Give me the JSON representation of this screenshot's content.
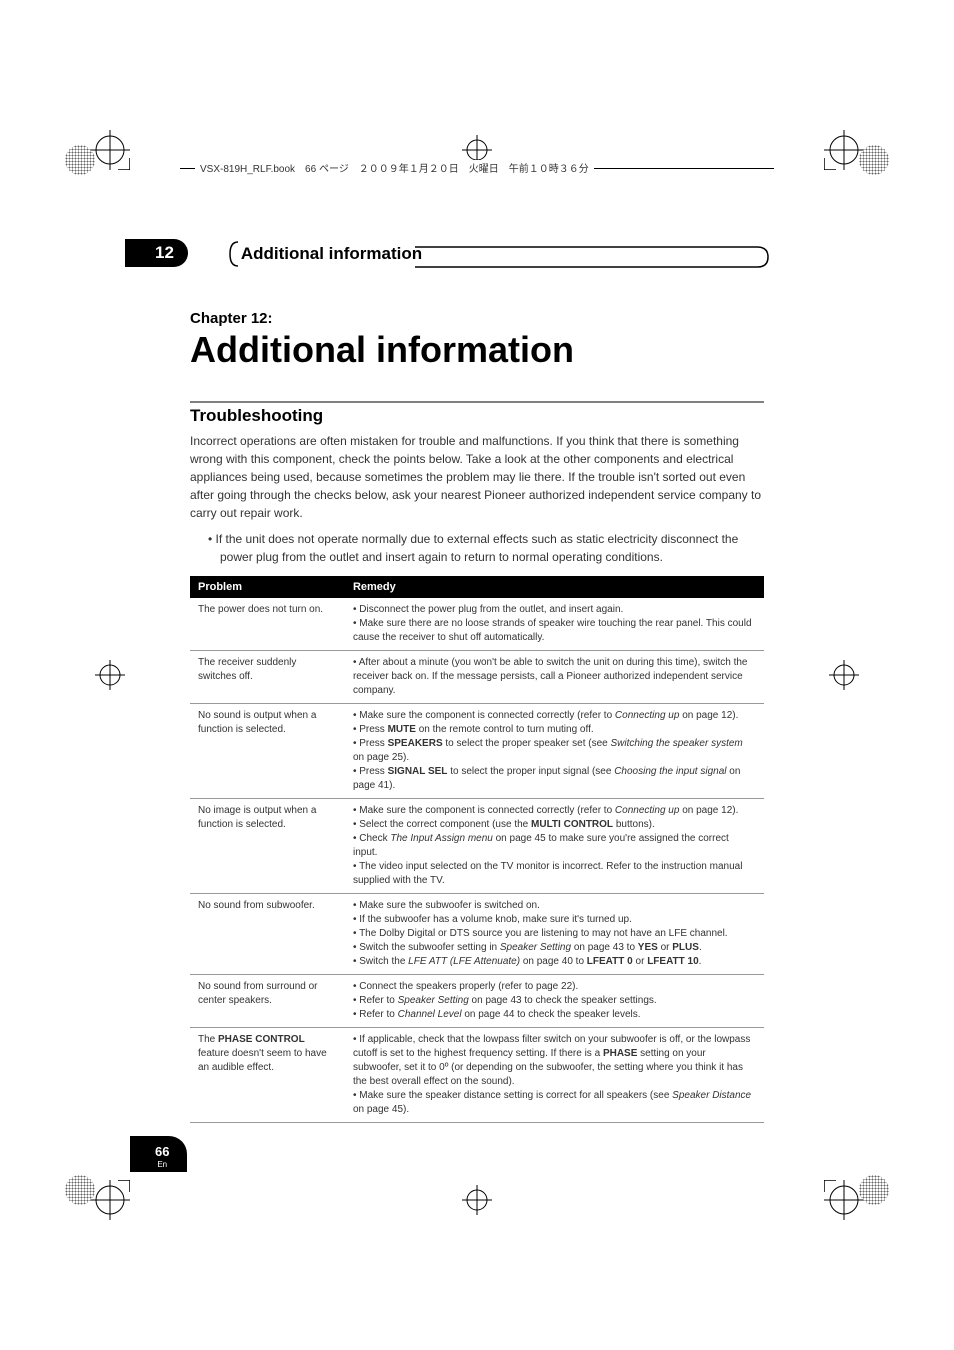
{
  "header_text": "VSX-819H_RLF.book　66 ページ　２００９年１月２０日　火曜日　午前１０時３６分",
  "chapter_number": "12",
  "chapter_header_title": "Additional information",
  "chapter_label": "Chapter 12:",
  "main_title": "Additional information",
  "section_title": "Troubleshooting",
  "intro_text": "Incorrect operations are often mistaken for trouble and malfunctions. If you think that there is something wrong with this component, check the points below. Take a look at the other components and electrical appliances being used, because sometimes the problem may lie there. If the trouble isn't sorted out even after going through the checks below, ask your nearest Pioneer authorized independent service company to carry out repair work.",
  "bullet_text": "• If the unit does not operate normally due to external effects such as static electricity disconnect the power plug from the outlet and insert again to return to normal operating conditions.",
  "table": {
    "type": "table",
    "header_bg": "#000000",
    "header_fg": "#ffffff",
    "row_border": "#999999",
    "text_color": "#333333",
    "columns": [
      "Problem",
      "Remedy"
    ],
    "col_widths": [
      "27%",
      "73%"
    ],
    "rows": [
      {
        "problem": "The power does not turn on.",
        "remedy": "• Disconnect the power plug from the outlet, and insert again.\n• Make sure there are no loose strands of speaker wire touching the rear panel. This could cause the receiver to shut off automatically."
      },
      {
        "problem": "The receiver suddenly switches off.",
        "remedy": "• After about a minute (you won't be able to switch the unit on during this time), switch the receiver back on. If the message persists, call a Pioneer authorized independent service company."
      },
      {
        "problem": "No sound is output when a function is selected.",
        "remedy_html": "• Make sure the component is connected correctly (refer to <i>Connecting up</i> on page 12).<br>• Press <b>MUTE</b> on the remote control to turn muting off.<br>• Press <b>SPEAKERS</b> to select the proper speaker set (see <i>Switching the speaker system</i> on page 25).<br>• Press <b>SIGNAL SEL</b> to select the proper input signal (see <i>Choosing the input signal</i> on page 41)."
      },
      {
        "problem": "No image is output when a function is selected.",
        "remedy_html": "• Make sure the component is connected correctly (refer to <i>Connecting up</i> on page 12).<br>• Select the correct component (use the <b>MULTI CONTROL</b> buttons).<br>• Check <i>The Input Assign menu</i> on page 45 to make sure you're assigned the correct input.<br>• The video input selected on the TV monitor is incorrect. Refer to the instruction manual supplied with the TV."
      },
      {
        "problem": "No sound from subwoofer.",
        "remedy_html": "• Make sure the subwoofer is switched on.<br>• If the subwoofer has a volume knob, make sure it's turned up.<br>• The Dolby Digital or DTS source you are listening to may not have an LFE channel.<br>• Switch the subwoofer setting in <i>Speaker Setting</i> on page 43 to <b>YES</b> or <b>PLUS</b>.<br>• Switch the <i>LFE ATT (LFE Attenuate)</i> on page 40 to <b>LFEATT 0</b> or <b>LFEATT 10</b>."
      },
      {
        "problem": "No sound from surround or center speakers.",
        "remedy_html": "• Connect the speakers properly (refer to page 22).<br>• Refer to <i>Speaker Setting</i> on page 43 to check the speaker settings.<br>• Refer to <i>Channel Level</i> on page 44 to check the speaker levels."
      },
      {
        "problem_html": "The <b>PHASE CONTROL</b> feature doesn't seem to have an audible effect.",
        "remedy_html": "• If applicable, check that the lowpass filter switch on your subwoofer is off, or the lowpass cutoff is set to the highest frequency setting. If there is a <b>PHASE</b> setting on your subwoofer, set it to 0º (or depending on the subwoofer, the setting where you think it has the best overall effect on the sound).<br>• Make sure the speaker distance setting is correct for all speakers (see <i>Speaker Distance</i> on page 45)."
      }
    ]
  },
  "page_number": "66",
  "page_lang": "En",
  "colors": {
    "black": "#000000",
    "white": "#ffffff",
    "gray_line": "#808080",
    "text": "#333333"
  },
  "fonts": {
    "body_size": 12,
    "table_size": 10,
    "title_size": 36,
    "section_size": 17
  }
}
